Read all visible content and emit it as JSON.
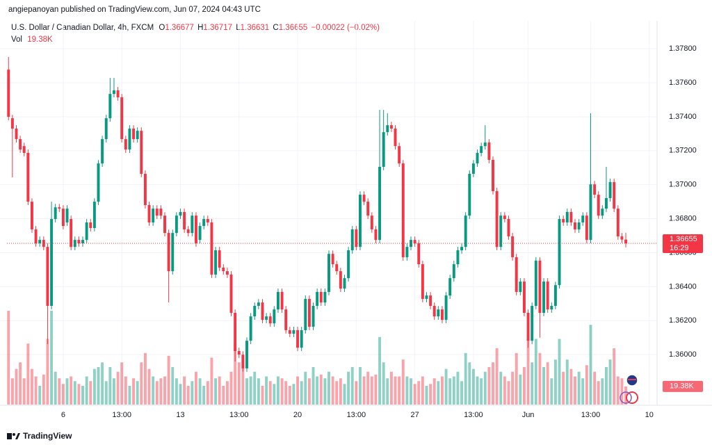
{
  "chart_data": {
    "type": "candlestick",
    "publisher_line": "angiepanoyan published on TradingView.com, Jun 07, 2024 04:43 UTC",
    "title": "U.S. Dollar / Canadian Dollar, 4h, FXCM",
    "ohlc_prefixes": [
      "O",
      "H",
      "L",
      "C"
    ],
    "change": "−0.00022 (−0.02%)",
    "volume_prefix": "Vol",
    "countdown": "16:29",
    "brand": "TradingView",
    "up_color": "#089981",
    "down_color": "#f23645",
    "grid": true,
    "xlim": [
      -0.4,
      166
    ],
    "xticks": [
      {
        "value": 14,
        "label": "6"
      },
      {
        "value": 29,
        "label": "13:00"
      },
      {
        "value": 44,
        "label": "13"
      },
      {
        "value": 59,
        "label": "13:00"
      },
      {
        "value": 74,
        "label": "20"
      },
      {
        "value": 89,
        "label": "13:00"
      },
      {
        "value": 104,
        "label": "27"
      },
      {
        "value": 119,
        "label": "13:00"
      },
      {
        "value": 133,
        "label": "Jun"
      },
      {
        "value": 149,
        "label": "13:00"
      },
      {
        "value": 164,
        "label": "10"
      }
    ],
    "ylim": [
      1.35702,
      1.37923
    ],
    "yticks": [
      {
        "value": 1.378,
        "label": "1.37800"
      },
      {
        "value": 1.376,
        "label": "1.37600"
      },
      {
        "value": 1.374,
        "label": "1.37400"
      },
      {
        "value": 1.372,
        "label": "1.37200"
      },
      {
        "value": 1.37,
        "label": "1.37000"
      },
      {
        "value": 1.368,
        "label": "1.36800"
      },
      {
        "value": 1.366,
        "label": "1.36600"
      },
      {
        "value": 1.364,
        "label": "1.36400"
      },
      {
        "value": 1.362,
        "label": "1.36200"
      },
      {
        "value": 1.36,
        "label": "1.36000"
      }
    ],
    "open": [
      1.37677,
      1.37391,
      1.3733,
      1.37268,
      1.37227,
      1.37187,
      1.369,
      1.36737,
      1.36655,
      1.36675,
      1.36634,
      1.36287,
      1.36798,
      1.36867,
      1.36859,
      1.36778,
      1.36798,
      1.36634,
      1.36675,
      1.36655,
      1.36675,
      1.36778,
      1.36745,
      1.369,
      1.37125,
      1.37268,
      1.37391,
      1.37534,
      1.37555,
      1.37514,
      1.37268,
      1.37207,
      1.3733,
      1.37268,
      1.37317,
      1.37064,
      1.3688,
      1.36778,
      1.36859,
      1.36859,
      1.36818,
      1.36716,
      1.36491,
      1.36716,
      1.36818,
      1.36839,
      1.36737,
      1.36716,
      1.36818,
      1.36675,
      1.36757,
      1.36798,
      1.36778,
      1.36471,
      1.36614,
      1.36512,
      1.36491,
      1.36471,
      1.36246,
      1.36021,
      1.36,
      1.35919,
      1.36082,
      1.36225,
      1.36287,
      1.36307,
      1.36205,
      1.36225,
      1.36184,
      1.36266,
      1.36369,
      1.36266,
      1.36144,
      1.36123,
      1.36144,
      1.36041,
      1.36144,
      1.36328,
      1.36164,
      1.36287,
      1.36369,
      1.36307,
      1.36369,
      1.36593,
      1.36532,
      1.36491,
      1.36389,
      1.3645,
      1.36614,
      1.36737,
      1.36634,
      1.36941,
      1.369,
      1.36818,
      1.36737,
      1.36675,
      1.37105,
      1.37309,
      1.3735,
      1.3733,
      1.37227,
      1.37125,
      1.36573,
      1.36634,
      1.36675,
      1.36655,
      1.36532,
      1.36328,
      1.36348,
      1.36287,
      1.36225,
      1.36266,
      1.36205,
      1.36348,
      1.3645,
      1.36532,
      1.36614,
      1.36634,
      1.36818,
      1.37064,
      1.37125,
      1.37187,
      1.37227,
      1.37248,
      1.37146,
      1.36962,
      1.36634,
      1.36818,
      1.36798,
      1.36696,
      1.36573,
      1.36369,
      1.3643,
      1.36246,
      1.36082,
      1.36287,
      1.36553,
      1.36246,
      1.3643,
      1.36266,
      1.36287,
      1.36409,
      1.36798,
      1.36778,
      1.36839,
      1.36778,
      1.36737,
      1.36778,
      1.36818,
      1.36675,
      1.37002,
      1.36941,
      1.36818,
      1.36859,
      1.36921,
      1.37015,
      1.36859,
      1.36696,
      1.36677
    ],
    "high": [
      1.37751,
      1.37411,
      1.3735,
      1.37288,
      1.37247,
      1.37207,
      1.3692,
      1.36757,
      1.36695,
      1.36695,
      1.36654,
      1.369,
      1.36887,
      1.36887,
      1.36879,
      1.36879,
      1.36818,
      1.36695,
      1.36695,
      1.36695,
      1.36798,
      1.36798,
      1.3692,
      1.37145,
      1.37288,
      1.37411,
      1.37628,
      1.37628,
      1.37575,
      1.37534,
      1.37288,
      1.3735,
      1.3735,
      1.37337,
      1.37337,
      1.37084,
      1.369,
      1.36879,
      1.36879,
      1.36879,
      1.36838,
      1.36736,
      1.36736,
      1.36838,
      1.36859,
      1.36859,
      1.36757,
      1.36838,
      1.36838,
      1.36777,
      1.36818,
      1.36818,
      1.36798,
      1.36634,
      1.36634,
      1.36532,
      1.36511,
      1.36491,
      1.36266,
      1.36041,
      1.3602,
      1.36102,
      1.36245,
      1.36307,
      1.36327,
      1.36327,
      1.36245,
      1.36245,
      1.36286,
      1.36389,
      1.36389,
      1.36286,
      1.36164,
      1.36164,
      1.36164,
      1.36164,
      1.36348,
      1.36348,
      1.36307,
      1.36389,
      1.36389,
      1.36389,
      1.36613,
      1.36613,
      1.36552,
      1.36511,
      1.3647,
      1.36634,
      1.36757,
      1.36757,
      1.36961,
      1.36961,
      1.3692,
      1.36838,
      1.36757,
      1.3744,
      1.3744,
      1.3742,
      1.3737,
      1.3735,
      1.37247,
      1.37145,
      1.36654,
      1.36695,
      1.36695,
      1.36675,
      1.36552,
      1.36368,
      1.36368,
      1.36307,
      1.36286,
      1.36286,
      1.36368,
      1.3647,
      1.36552,
      1.36634,
      1.36654,
      1.36838,
      1.37084,
      1.37145,
      1.37207,
      1.37247,
      1.3735,
      1.37268,
      1.37166,
      1.36982,
      1.36838,
      1.36838,
      1.36818,
      1.36716,
      1.36593,
      1.3645,
      1.3645,
      1.36266,
      1.36307,
      1.36573,
      1.36573,
      1.3645,
      1.3645,
      1.36307,
      1.36429,
      1.36818,
      1.36818,
      1.36859,
      1.36859,
      1.36798,
      1.36798,
      1.36838,
      1.36838,
      1.3742,
      1.37022,
      1.36961,
      1.36879,
      1.37105,
      1.37035,
      1.37035,
      1.36879,
      1.36716,
      1.36717
    ],
    "low": [
      1.37379,
      1.37043,
      1.37248,
      1.37187,
      1.37167,
      1.3688,
      1.36717,
      1.36635,
      1.36635,
      1.36614,
      1.36062,
      1.36267,
      1.36778,
      1.36839,
      1.36737,
      1.36758,
      1.36614,
      1.36614,
      1.36635,
      1.36635,
      1.36655,
      1.36725,
      1.36725,
      1.3688,
      1.37105,
      1.37248,
      1.37371,
      1.37514,
      1.37494,
      1.37248,
      1.37187,
      1.37187,
      1.37248,
      1.37248,
      1.37044,
      1.3686,
      1.36758,
      1.36758,
      1.36798,
      1.36798,
      1.36696,
      1.36307,
      1.36471,
      1.36696,
      1.36798,
      1.36717,
      1.36696,
      1.36696,
      1.36635,
      1.36655,
      1.36737,
      1.36758,
      1.36451,
      1.36451,
      1.36492,
      1.36471,
      1.36451,
      1.36226,
      1.3596,
      1.3598,
      1.359,
      1.35899,
      1.36062,
      1.36205,
      1.36267,
      1.36185,
      1.36185,
      1.36164,
      1.36164,
      1.36246,
      1.36246,
      1.36124,
      1.36103,
      1.36103,
      1.36021,
      1.36021,
      1.36124,
      1.36144,
      1.36144,
      1.36267,
      1.36287,
      1.36287,
      1.36349,
      1.36512,
      1.36471,
      1.36369,
      1.36369,
      1.3643,
      1.36594,
      1.36614,
      1.36614,
      1.3688,
      1.36798,
      1.36717,
      1.36655,
      1.36655,
      1.37085,
      1.37289,
      1.3731,
      1.37207,
      1.37105,
      1.36553,
      1.36553,
      1.36614,
      1.36635,
      1.36512,
      1.36308,
      1.36308,
      1.36267,
      1.36205,
      1.36205,
      1.36185,
      1.36185,
      1.36328,
      1.3643,
      1.36512,
      1.36594,
      1.36614,
      1.36798,
      1.37044,
      1.37105,
      1.37167,
      1.37207,
      1.37126,
      1.36942,
      1.36614,
      1.36614,
      1.36778,
      1.36676,
      1.36553,
      1.36349,
      1.36349,
      1.36226,
      1.3604,
      1.36062,
      1.36267,
      1.361,
      1.36226,
      1.36246,
      1.36246,
      1.36267,
      1.36389,
      1.36758,
      1.36758,
      1.36758,
      1.36717,
      1.36717,
      1.36758,
      1.36655,
      1.36655,
      1.36921,
      1.36798,
      1.36798,
      1.36839,
      1.36901,
      1.36839,
      1.36676,
      1.36657,
      1.36631
    ],
    "close": [
      1.37399,
      1.3733,
      1.37268,
      1.37207,
      1.37187,
      1.369,
      1.36737,
      1.36655,
      1.36675,
      1.36634,
      1.36287,
      1.36798,
      1.36867,
      1.36859,
      1.36757,
      1.36859,
      1.36634,
      1.36675,
      1.36655,
      1.36675,
      1.36778,
      1.36745,
      1.369,
      1.37125,
      1.37268,
      1.37391,
      1.37534,
      1.37555,
      1.37514,
      1.37268,
      1.37207,
      1.3733,
      1.37268,
      1.37317,
      1.37064,
      1.3688,
      1.36778,
      1.36859,
      1.36818,
      1.36818,
      1.36716,
      1.36491,
      1.36716,
      1.36818,
      1.36839,
      1.36737,
      1.36716,
      1.36818,
      1.36655,
      1.36757,
      1.36798,
      1.36778,
      1.36471,
      1.36614,
      1.36512,
      1.36491,
      1.36471,
      1.36246,
      1.36021,
      1.36,
      1.35919,
      1.36082,
      1.36225,
      1.36287,
      1.36307,
      1.36205,
      1.36225,
      1.36184,
      1.36266,
      1.36369,
      1.36266,
      1.36144,
      1.36123,
      1.36144,
      1.36041,
      1.36144,
      1.36328,
      1.36164,
      1.36287,
      1.36369,
      1.36307,
      1.36369,
      1.36593,
      1.36532,
      1.36491,
      1.36389,
      1.3645,
      1.36614,
      1.36737,
      1.36634,
      1.36941,
      1.369,
      1.36818,
      1.36737,
      1.36675,
      1.37105,
      1.37309,
      1.3735,
      1.3733,
      1.37227,
      1.37125,
      1.36573,
      1.36634,
      1.36675,
      1.36655,
      1.36532,
      1.36328,
      1.36348,
      1.36287,
      1.36225,
      1.36266,
      1.36205,
      1.36348,
      1.3645,
      1.36532,
      1.36614,
      1.36634,
      1.36818,
      1.37064,
      1.37125,
      1.37187,
      1.37227,
      1.37248,
      1.37146,
      1.36962,
      1.36634,
      1.36818,
      1.36798,
      1.36696,
      1.36573,
      1.36369,
      1.3643,
      1.36246,
      1.36082,
      1.36287,
      1.36553,
      1.36246,
      1.3643,
      1.36266,
      1.36287,
      1.36409,
      1.36798,
      1.36778,
      1.36839,
      1.36778,
      1.36737,
      1.36778,
      1.36818,
      1.36675,
      1.37002,
      1.36941,
      1.36818,
      1.36859,
      1.36921,
      1.37015,
      1.36859,
      1.36696,
      1.36677,
      1.36655
    ],
    "volume": [
      100,
      28,
      38,
      45,
      28,
      65,
      38,
      30,
      20,
      32,
      70,
      100,
      35,
      28,
      22,
      28,
      30,
      25,
      22,
      20,
      30,
      25,
      38,
      40,
      45,
      25,
      40,
      28,
      35,
      45,
      30,
      20,
      28,
      25,
      45,
      55,
      38,
      30,
      25,
      28,
      30,
      52,
      40,
      28,
      22,
      30,
      20,
      25,
      35,
      28,
      20,
      25,
      50,
      28,
      30,
      20,
      25,
      35,
      65,
      45,
      50,
      28,
      30,
      35,
      28,
      20,
      30,
      25,
      22,
      30,
      28,
      25,
      20,
      22,
      30,
      25,
      35,
      28,
      40,
      30,
      32,
      28,
      35,
      30,
      25,
      28,
      22,
      35,
      40,
      25,
      40,
      30,
      35,
      30,
      32,
      72,
      45,
      28,
      35,
      30,
      30,
      48,
      30,
      28,
      22,
      25,
      30,
      20,
      22,
      28,
      25,
      30,
      38,
      28,
      30,
      35,
      25,
      55,
      45,
      38,
      30,
      28,
      35,
      40,
      45,
      60,
      35,
      30,
      25,
      35,
      55,
      32,
      40,
      75,
      45,
      70,
      55,
      40,
      45,
      28,
      48,
      70,
      35,
      48,
      38,
      30,
      35,
      28,
      42,
      85,
      35,
      25,
      28,
      40,
      48,
      60,
      30,
      28,
      19.38
    ],
    "volume_value_labels": [
      null,
      null,
      null,
      null,
      null,
      null,
      null,
      null,
      null,
      null,
      null,
      null,
      null,
      null,
      null,
      null,
      null,
      null,
      null,
      null,
      null,
      null,
      null,
      null,
      null,
      null,
      null,
      null,
      null,
      null,
      null,
      null,
      null,
      null,
      null,
      null,
      null,
      null,
      null,
      null,
      null,
      null,
      null,
      null,
      null,
      null,
      null,
      null,
      null,
      null,
      null,
      null,
      null,
      null,
      null,
      null,
      null,
      null,
      null,
      null,
      null,
      null,
      null,
      null,
      null,
      null,
      null,
      null,
      null,
      null,
      null,
      null,
      null,
      null,
      null,
      null,
      null,
      null,
      null,
      null,
      null,
      null,
      null,
      null,
      null,
      null,
      null,
      null,
      null,
      null,
      null,
      null,
      null,
      null,
      null,
      null,
      null,
      null,
      null,
      null,
      null,
      null,
      null,
      null,
      null,
      null,
      null,
      null,
      null,
      null,
      null,
      null,
      null,
      null,
      null,
      null,
      null,
      null,
      null,
      null,
      null,
      null,
      null,
      null,
      null,
      null,
      null,
      null,
      null,
      null,
      null,
      null,
      null,
      null,
      null,
      null,
      null,
      null,
      null,
      null,
      null,
      null,
      null,
      null,
      null,
      null,
      null,
      null,
      null,
      null,
      null,
      null,
      null,
      null,
      null,
      null,
      null,
      null,
      "19.38K"
    ]
  }
}
